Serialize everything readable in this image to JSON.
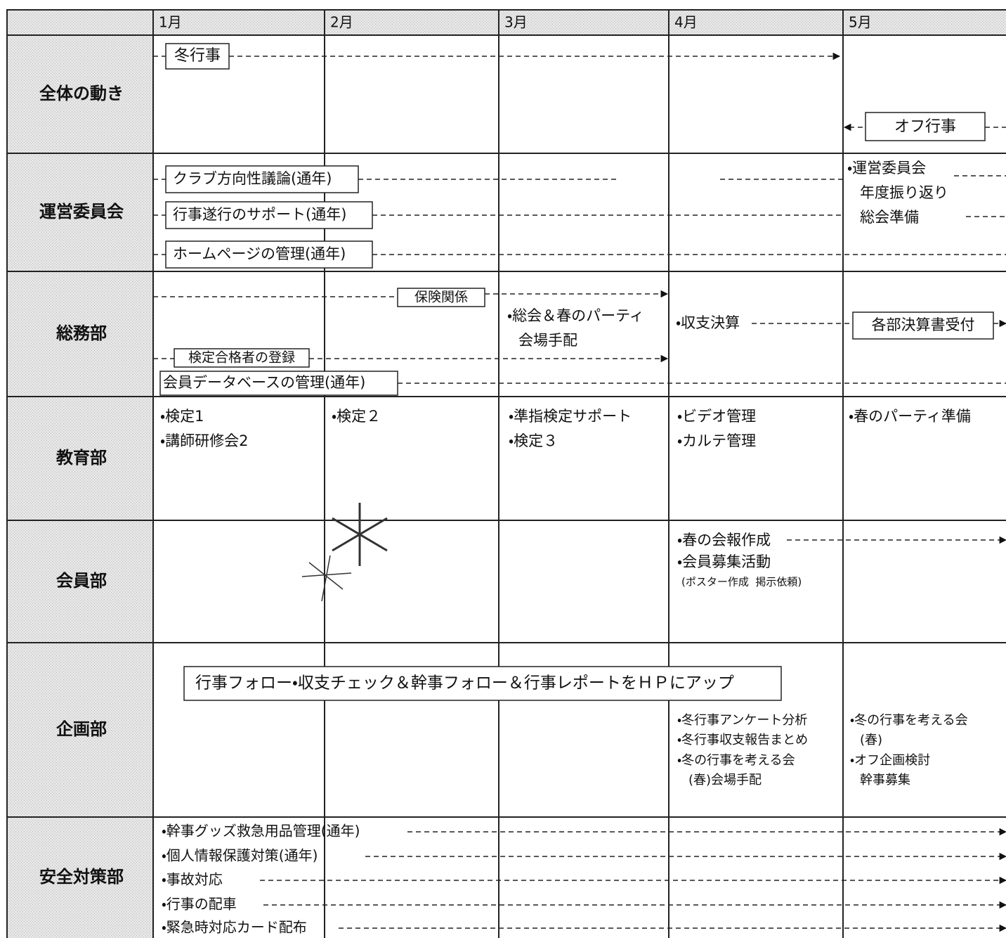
{
  "months": [
    "1月",
    "2月",
    "3月",
    "4月",
    "5月"
  ],
  "rows": [
    {
      "label": "全体の動き",
      "items": [
        "冬行事",
        "オフ行事"
      ]
    },
    {
      "label": "運営委員会",
      "items": [
        "クラブ方向性議論(通年)",
        "行事遂行のサポート(通年)",
        "ホームページの管理(通年)",
        "・運営委員会",
        "年度振り返り",
        "総会準備"
      ]
    },
    {
      "label": "総務部",
      "items": [
        "保険関係",
        "・総会＆春のパーティ",
        "会場手配",
        "・収支決算",
        "各部決算書受付",
        "検定合格者の登録",
        "会員データベースの管理(通年)"
      ]
    },
    {
      "label": "教育部",
      "items": [
        "・検定1",
        "・講師研修会2",
        "・検定２",
        "・準指検定サポート",
        "・検定３",
        "・ビデオ管理",
        "・カルテ管理",
        "・春のパーティ準備"
      ]
    },
    {
      "label": "会員部",
      "items": [
        "・春の会報作成",
        "・会員募集活動",
        "(ポスター作成  掲示依頼)"
      ]
    },
    {
      "label": "企画部",
      "items": [
        "行事フォロー・収支チェック＆幹事フォロー＆行事レポートをＨＰにアップ",
        "・冬行事アンケート分析",
        "・冬行事収支報告まとめ",
        "・冬の行事を考える会",
        "(春)会場手配",
        "・冬の行事を考える会",
        "(春)",
        "・オフ企画検討",
        "幹事募集"
      ]
    },
    {
      "label": "安全対策部",
      "items": [
        "・幹事グッズ救急用品管理(通年)",
        "・個人情報保護対策(通年)",
        "・事故対応",
        "・行事の配車",
        "・緊急時対応カード配布"
      ]
    }
  ]
}
